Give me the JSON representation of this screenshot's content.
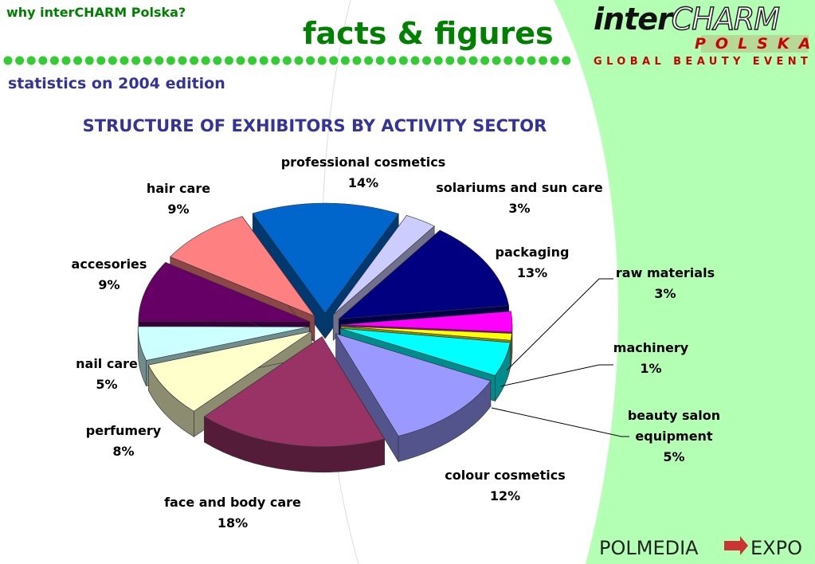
{
  "header": {
    "section": "why interCHARM Polska?",
    "title": "facts & figures",
    "subtitle": "statistics on 2004 edition"
  },
  "logo": {
    "brand_a": "inter",
    "brand_b": "CHARM",
    "country": "POLSKA",
    "tagline": "GLOBAL BEAUTY EVENT"
  },
  "footer": {
    "brand_a": "POLMEDIA",
    "brand_b": "EXPO"
  },
  "chart_data": {
    "type": "pie",
    "title": "STRUCTURE OF EXHIBITORS BY ACTIVITY SECTOR",
    "categories": [
      "professional cosmetics",
      "solariums and sun care",
      "packaging",
      "raw materials",
      "machinery",
      "beauty salon equipment",
      "colour cosmetics",
      "face and body care",
      "perfumery",
      "nail care",
      "accesories",
      "hair care"
    ],
    "values": [
      14,
      3,
      13,
      3,
      1,
      5,
      12,
      18,
      8,
      5,
      9,
      9
    ],
    "value_labels": [
      "14%",
      "3%",
      "13%",
      "3%",
      "1%",
      "5%",
      "12%",
      "18%",
      "8%",
      "5%",
      "9%",
      "9%"
    ],
    "colors": [
      "#0066cc",
      "#ccccff",
      "#000080",
      "#ff00ff",
      "#ffff00",
      "#00ffff",
      "#9999ff",
      "#993366",
      "#ffffcc",
      "#ccffff",
      "#660066",
      "#ff8080"
    ]
  }
}
